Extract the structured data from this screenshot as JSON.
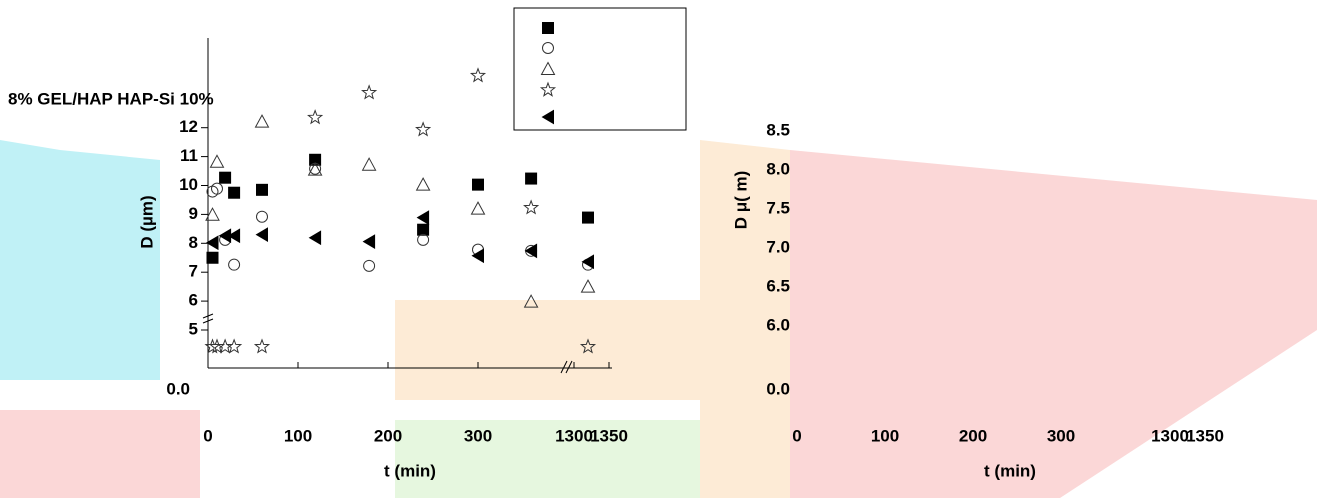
{
  "chart_data": [
    {
      "type": "scatter",
      "title": "8% GEL/HAP HAP-Si 10%",
      "y_label": "D (µm)",
      "x_label": "t (min)",
      "xlim": [
        0,
        1355
      ],
      "xbreak": [
        370,
        1290
      ],
      "xticks": [
        0,
        100,
        200,
        300,
        1300,
        1350
      ],
      "ylim": [
        0,
        15
      ],
      "ybreak": [
        0.5,
        4.2
      ],
      "yticks": [
        {
          "value": 0,
          "label": "0.0"
        },
        5,
        6,
        7,
        8,
        9,
        10,
        11,
        12
      ],
      "legend": true,
      "series": [
        {
          "marker": "filled-square",
          "color": "#000000",
          "x": [
            5,
            19,
            29,
            60,
            119,
            239,
            300,
            359,
            1320
          ],
          "values": [
            7.5,
            10.27,
            9.75,
            9.85,
            10.89,
            8.47,
            10.03,
            10.24,
            8.89
          ]
        },
        {
          "marker": "circle",
          "color": "#333333",
          "x": [
            5,
            10,
            19,
            29,
            60,
            119,
            179,
            239,
            300,
            359,
            1320
          ],
          "values": [
            9.79,
            9.89,
            8.12,
            7.26,
            8.92,
            10.58,
            7.22,
            8.12,
            7.78,
            7.74,
            7.26
          ]
        },
        {
          "marker": "triangle",
          "color": "#333333",
          "x": [
            5,
            10,
            60,
            119,
            179,
            239,
            300,
            359,
            1320
          ],
          "values": [
            8.99,
            10.82,
            12.21,
            10.55,
            10.72,
            10.03,
            9.2,
            5.98,
            6.5
          ]
        },
        {
          "marker": "star",
          "color": "#333333",
          "x": [
            5,
            10,
            19,
            29,
            60,
            119,
            179,
            239,
            300,
            359,
            1320
          ],
          "values": [
            4.42,
            4.42,
            4.42,
            4.42,
            4.42,
            12.35,
            13.21,
            11.93,
            13.8,
            9.23,
            4.42
          ]
        },
        {
          "marker": "left-triangle",
          "color": "#000000",
          "x": [
            5,
            19,
            29,
            60,
            119,
            179,
            239,
            300,
            359,
            1320
          ],
          "values": [
            8.02,
            8.26,
            8.26,
            8.3,
            8.19,
            8.06,
            8.89,
            7.57,
            7.74,
            7.36
          ]
        }
      ]
    },
    {
      "type": "scatter",
      "y_label": "D μ( m)",
      "x_label": "t (min)",
      "xlim": [
        0,
        1355
      ],
      "xbreak": [
        370,
        1290
      ],
      "xticks": [
        0,
        100,
        200,
        300,
        1300,
        1350
      ],
      "ylim": [
        0,
        8.5
      ],
      "ybreak": [
        0.5,
        6
      ],
      "yticks": [
        {
          "value": 0,
          "label": "0.0"
        },
        {
          "value": 6,
          "label": "6.0"
        },
        6.5,
        {
          "value": 7,
          "label": "7.0"
        },
        7.5,
        {
          "value": 8,
          "label": "8.0"
        },
        8.5
      ],
      "series": []
    }
  ]
}
